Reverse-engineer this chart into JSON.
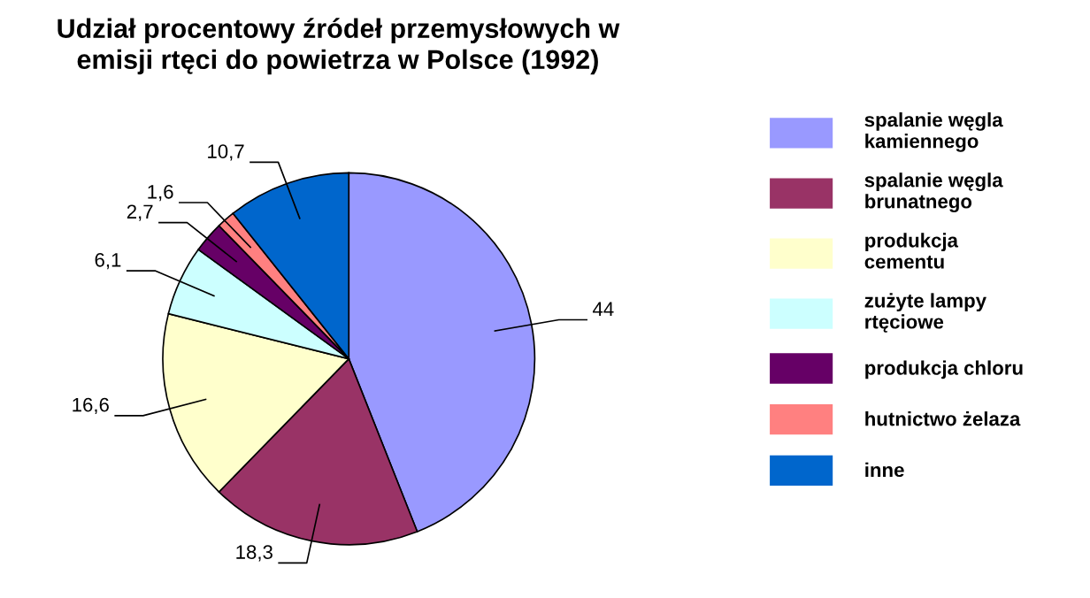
{
  "chart_data": {
    "type": "pie",
    "title": "Udział procentowy źródeł przemysłowych w\nemisji rtęci do powietrza w Polsce (1992)",
    "categories": [
      "spalanie węgla\nkamiennego",
      "spalanie węgla\nbrunatnego",
      "produkcja\ncementu",
      "zużyte lampy\nrtęciowe",
      "produkcja chloru",
      "hutnictwo żelaza",
      "inne"
    ],
    "values": [
      44,
      18.3,
      16.6,
      6.1,
      2.7,
      1.6,
      10.7
    ],
    "value_labels": [
      "44",
      "18,3",
      "16,6",
      "6,1",
      "2,7",
      "1,6",
      "10,7"
    ],
    "colors": [
      "#9999ff",
      "#993366",
      "#ffffcc",
      "#ccffff",
      "#660066",
      "#ff8080",
      "#0066cc"
    ],
    "legend": "right"
  }
}
